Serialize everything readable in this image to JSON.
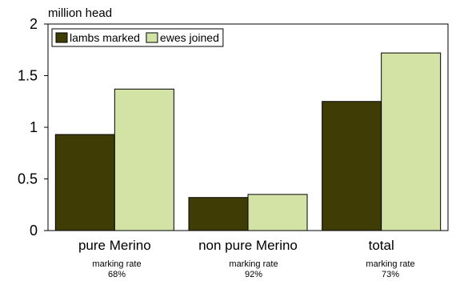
{
  "chart_data": {
    "type": "bar",
    "ylabel": "million head",
    "ylim": [
      0,
      2
    ],
    "yticks": [
      "0",
      "0.5",
      "1",
      "1.5",
      "2"
    ],
    "grid": false,
    "legend_position": "top-left",
    "categories": [
      "pure Merino",
      "non pure Merino",
      "total"
    ],
    "series": [
      {
        "name": "lambs marked",
        "color": "#3f3c06",
        "values": [
          0.93,
          0.32,
          1.25
        ]
      },
      {
        "name": "ewes joined",
        "color": "#d2e3a5",
        "values": [
          1.37,
          0.35,
          1.72
        ]
      }
    ],
    "annotations": [
      {
        "label": "marking rate",
        "value": "68%"
      },
      {
        "label": "marking rate",
        "value": "92%"
      },
      {
        "label": "marking rate",
        "value": "73%"
      }
    ]
  }
}
